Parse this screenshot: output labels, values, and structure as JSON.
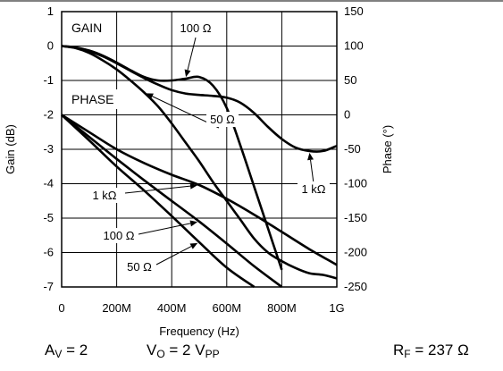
{
  "chart_data": {
    "type": "line",
    "xlabel": "Frequency (Hz)",
    "ylabel": "Gain (dB)",
    "y2label": "Phase (°)",
    "xlim": [
      0,
      1000000000
    ],
    "ylim": [
      -7,
      1
    ],
    "y2lim": [
      -250,
      150
    ],
    "x_ticks": [
      0,
      200000000,
      400000000,
      600000000,
      800000000,
      1000000000
    ],
    "x_tick_labels": [
      "0",
      "200M",
      "400M",
      "600M",
      "800M",
      "1G"
    ],
    "y_ticks": [
      1,
      0,
      -1,
      -2,
      -3,
      -4,
      -5,
      -6,
      -7
    ],
    "y_tick_labels": [
      "1",
      "0",
      "-1",
      "-2",
      "-3",
      "-4",
      "-5",
      "-6",
      "-7"
    ],
    "y2_ticks": [
      150,
      100,
      50,
      0,
      -50,
      -100,
      -150,
      -200,
      -250
    ],
    "y2_tick_labels": [
      "150",
      "100",
      "50",
      "0",
      "-50",
      "-100",
      "-150",
      "-200",
      "-250"
    ],
    "grid": true,
    "group_labels": [
      "GAIN",
      "PHASE"
    ],
    "series": [
      {
        "group": "GAIN",
        "label": "100 Ω",
        "axis": "left",
        "x": [
          0,
          50000000,
          100000000,
          150000000,
          200000000,
          250000000,
          300000000,
          350000000,
          400000000,
          450000000,
          500000000,
          550000000,
          600000000,
          650000000,
          700000000,
          750000000,
          800000000
        ],
        "y": [
          0,
          -0.04,
          -0.13,
          -0.28,
          -0.48,
          -0.7,
          -0.9,
          -1.0,
          -1.0,
          -0.95,
          -0.9,
          -1.15,
          -1.8,
          -2.9,
          -4.1,
          -5.3,
          -6.5
        ]
      },
      {
        "group": "GAIN",
        "label": "50 Ω",
        "axis": "left",
        "x": [
          0,
          50000000,
          100000000,
          150000000,
          200000000,
          250000000,
          300000000,
          350000000,
          400000000,
          450000000,
          500000000,
          550000000,
          600000000,
          650000000,
          700000000,
          750000000,
          800000000,
          850000000,
          900000000,
          950000000,
          1000000000
        ],
        "y": [
          0,
          -0.06,
          -0.2,
          -0.42,
          -0.68,
          -1.0,
          -1.35,
          -1.75,
          -2.25,
          -2.8,
          -3.35,
          -3.95,
          -4.5,
          -5.05,
          -5.6,
          -6.0,
          -6.25,
          -6.45,
          -6.6,
          -6.65,
          -6.75
        ]
      },
      {
        "group": "GAIN",
        "label": "1 kΩ",
        "axis": "left",
        "x": [
          0,
          50000000,
          100000000,
          150000000,
          200000000,
          250000000,
          300000000,
          350000000,
          400000000,
          450000000,
          500000000,
          550000000,
          600000000,
          650000000,
          700000000,
          750000000,
          800000000,
          850000000,
          900000000,
          950000000,
          1000000000
        ],
        "y": [
          0,
          -0.05,
          -0.15,
          -0.3,
          -0.5,
          -0.72,
          -0.93,
          -1.12,
          -1.28,
          -1.38,
          -1.42,
          -1.45,
          -1.5,
          -1.65,
          -1.95,
          -2.35,
          -2.7,
          -2.95,
          -3.05,
          -3.05,
          -2.9
        ]
      },
      {
        "group": "PHASE",
        "label": "1 kΩ",
        "axis": "right",
        "x": [
          0,
          100000000,
          200000000,
          300000000,
          400000000,
          500000000,
          600000000,
          700000000,
          800000000,
          900000000,
          1000000000
        ],
        "y": [
          0,
          -25,
          -50,
          -70,
          -87,
          -102,
          -122,
          -145,
          -170,
          -195,
          -218
        ]
      },
      {
        "group": "PHASE",
        "label": "100 Ω",
        "axis": "right",
        "x": [
          0,
          100000000,
          200000000,
          300000000,
          400000000,
          500000000,
          600000000,
          700000000,
          800000000
        ],
        "y": [
          0,
          -32,
          -64,
          -95,
          -125,
          -155,
          -187,
          -220,
          -250
        ]
      },
      {
        "group": "PHASE",
        "label": "50 Ω",
        "axis": "right",
        "x": [
          0,
          100000000,
          200000000,
          300000000,
          400000000,
          500000000,
          600000000,
          700000000
        ],
        "y": [
          0,
          -37,
          -75,
          -110,
          -147,
          -185,
          -222,
          -250
        ]
      }
    ],
    "annotations": [
      {
        "text": "100 Ω",
        "series": 0
      },
      {
        "text": "50 Ω",
        "series": 1
      },
      {
        "text": "1 kΩ",
        "series": 2
      },
      {
        "text": "1 kΩ",
        "series": 3
      },
      {
        "text": "100 Ω",
        "series": 4
      },
      {
        "text": "50 Ω",
        "series": 5
      }
    ]
  },
  "conditions": {
    "av_main": "A",
    "av_sub": "V",
    "av_value": " = 2",
    "vo_main": "V",
    "vo_sub": "O",
    "vo_mid": " = 2 V",
    "vo_sub2": "PP",
    "rf_main": "R",
    "rf_sub": "F",
    "rf_value": " = 237 Ω"
  }
}
